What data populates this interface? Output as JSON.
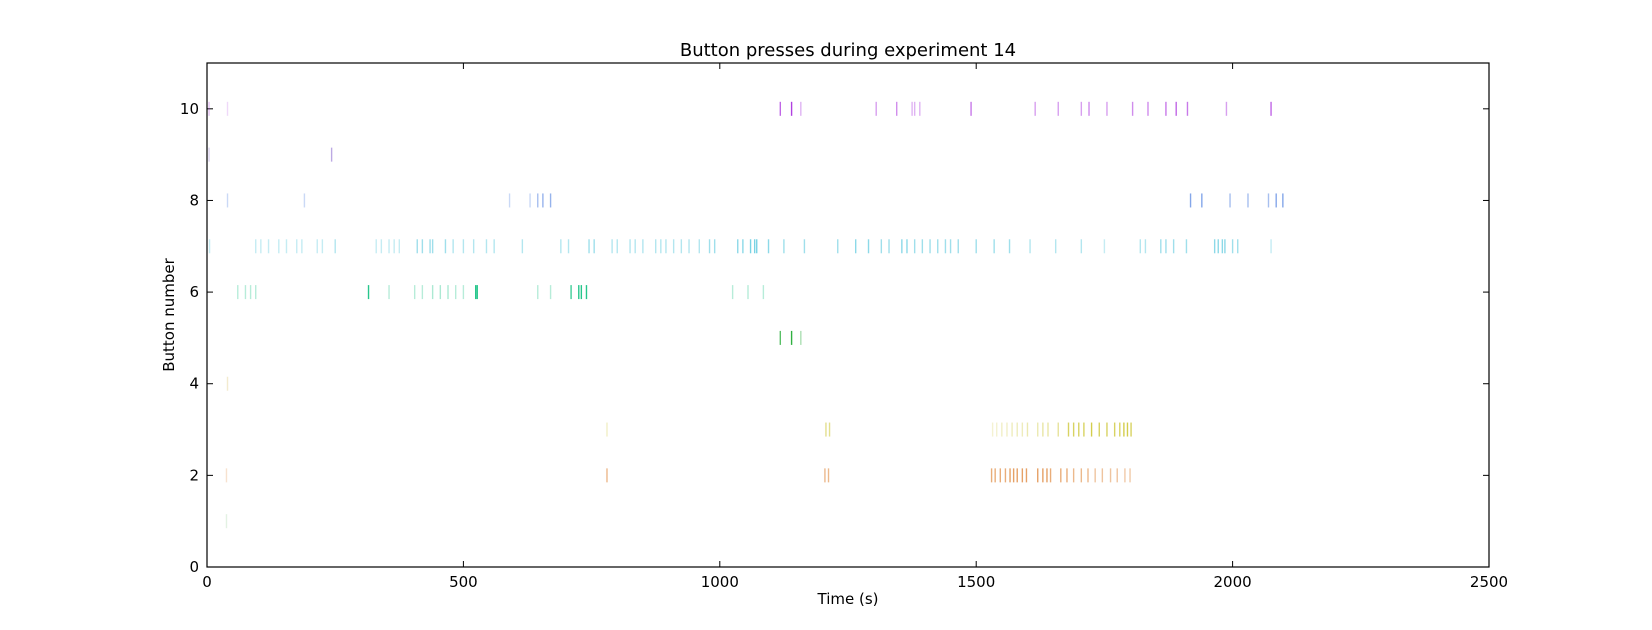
{
  "chart_data": {
    "type": "scatter",
    "marker": "vertical-tick",
    "title": "Button presses during experiment 14",
    "xlabel": "Time (s)",
    "ylabel": "Button number",
    "xlim": [
      0,
      2500
    ],
    "ylim": [
      0,
      11
    ],
    "xticks": [
      0,
      500,
      1000,
      1500,
      2000,
      2500
    ],
    "yticks": [
      0,
      2,
      4,
      6,
      8,
      10
    ],
    "grid": false,
    "series": [
      {
        "button": 1,
        "color": "#c8e6c8",
        "presses": [
          {
            "t": 38,
            "a": 0.5
          }
        ]
      },
      {
        "button": 2,
        "color": "#e08a40",
        "presses": [
          {
            "t": 38,
            "a": 0.25
          },
          {
            "t": 780,
            "a": 0.6
          },
          {
            "t": 1205,
            "a": 0.6
          },
          {
            "t": 1212,
            "a": 0.6
          },
          {
            "t": 1530,
            "a": 0.7
          },
          {
            "t": 1537,
            "a": 0.7
          },
          {
            "t": 1547,
            "a": 0.7
          },
          {
            "t": 1557,
            "a": 0.7
          },
          {
            "t": 1566,
            "a": 0.8
          },
          {
            "t": 1573,
            "a": 0.8
          },
          {
            "t": 1580,
            "a": 0.8
          },
          {
            "t": 1590,
            "a": 0.8
          },
          {
            "t": 1598,
            "a": 0.8
          },
          {
            "t": 1620,
            "a": 0.8
          },
          {
            "t": 1630,
            "a": 0.8
          },
          {
            "t": 1638,
            "a": 0.8
          },
          {
            "t": 1645,
            "a": 0.7
          },
          {
            "t": 1665,
            "a": 0.7
          },
          {
            "t": 1677,
            "a": 0.7
          },
          {
            "t": 1690,
            "a": 0.6
          },
          {
            "t": 1705,
            "a": 0.6
          },
          {
            "t": 1718,
            "a": 0.6
          },
          {
            "t": 1732,
            "a": 0.5
          },
          {
            "t": 1746,
            "a": 0.5
          },
          {
            "t": 1762,
            "a": 0.5
          },
          {
            "t": 1775,
            "a": 0.5
          },
          {
            "t": 1790,
            "a": 0.45
          },
          {
            "t": 1800,
            "a": 0.45
          }
        ]
      },
      {
        "button": 3,
        "color": "#c8c020",
        "presses": [
          {
            "t": 780,
            "a": 0.25
          },
          {
            "t": 1207,
            "a": 0.5
          },
          {
            "t": 1214,
            "a": 0.5
          },
          {
            "t": 1532,
            "a": 0.2
          },
          {
            "t": 1540,
            "a": 0.2
          },
          {
            "t": 1550,
            "a": 0.25
          },
          {
            "t": 1560,
            "a": 0.25
          },
          {
            "t": 1570,
            "a": 0.3
          },
          {
            "t": 1580,
            "a": 0.3
          },
          {
            "t": 1590,
            "a": 0.3
          },
          {
            "t": 1600,
            "a": 0.35
          },
          {
            "t": 1620,
            "a": 0.35
          },
          {
            "t": 1630,
            "a": 0.4
          },
          {
            "t": 1640,
            "a": 0.4
          },
          {
            "t": 1660,
            "a": 0.45
          },
          {
            "t": 1680,
            "a": 0.7
          },
          {
            "t": 1690,
            "a": 0.7
          },
          {
            "t": 1700,
            "a": 0.7
          },
          {
            "t": 1710,
            "a": 0.7
          },
          {
            "t": 1725,
            "a": 0.8
          },
          {
            "t": 1740,
            "a": 0.7
          },
          {
            "t": 1755,
            "a": 0.7
          },
          {
            "t": 1770,
            "a": 0.7
          },
          {
            "t": 1780,
            "a": 0.7
          },
          {
            "t": 1788,
            "a": 0.8
          },
          {
            "t": 1795,
            "a": 0.8
          },
          {
            "t": 1802,
            "a": 0.7
          }
        ]
      },
      {
        "button": 4,
        "color": "#e8d8a0",
        "presses": [
          {
            "t": 40,
            "a": 0.5
          }
        ]
      },
      {
        "button": 5,
        "color": "#30b040",
        "presses": [
          {
            "t": 1118,
            "a": 0.8
          },
          {
            "t": 1140,
            "a": 1.0
          },
          {
            "t": 1158,
            "a": 0.4
          }
        ]
      },
      {
        "button": 6,
        "color": "#10c080",
        "presses": [
          {
            "t": 60,
            "a": 0.3
          },
          {
            "t": 75,
            "a": 0.3
          },
          {
            "t": 85,
            "a": 0.3
          },
          {
            "t": 95,
            "a": 0.3
          },
          {
            "t": 315,
            "a": 0.9
          },
          {
            "t": 355,
            "a": 0.3
          },
          {
            "t": 405,
            "a": 0.3
          },
          {
            "t": 420,
            "a": 0.3
          },
          {
            "t": 440,
            "a": 0.35
          },
          {
            "t": 455,
            "a": 0.35
          },
          {
            "t": 470,
            "a": 0.35
          },
          {
            "t": 485,
            "a": 0.3
          },
          {
            "t": 500,
            "a": 0.3
          },
          {
            "t": 524,
            "a": 0.9
          },
          {
            "t": 527,
            "a": 0.9
          },
          {
            "t": 645,
            "a": 0.3
          },
          {
            "t": 670,
            "a": 0.3
          },
          {
            "t": 710,
            "a": 0.8
          },
          {
            "t": 725,
            "a": 0.9
          },
          {
            "t": 730,
            "a": 0.9
          },
          {
            "t": 740,
            "a": 0.9
          },
          {
            "t": 1025,
            "a": 0.3
          },
          {
            "t": 1055,
            "a": 0.3
          },
          {
            "t": 1085,
            "a": 0.3
          }
        ]
      },
      {
        "button": 7,
        "color": "#40c0d8",
        "presses": [
          {
            "t": 5,
            "a": 0.3
          },
          {
            "t": 95,
            "a": 0.3
          },
          {
            "t": 105,
            "a": 0.3
          },
          {
            "t": 120,
            "a": 0.3
          },
          {
            "t": 140,
            "a": 0.3
          },
          {
            "t": 155,
            "a": 0.3
          },
          {
            "t": 175,
            "a": 0.3
          },
          {
            "t": 185,
            "a": 0.3
          },
          {
            "t": 215,
            "a": 0.3
          },
          {
            "t": 225,
            "a": 0.3
          },
          {
            "t": 250,
            "a": 0.4
          },
          {
            "t": 330,
            "a": 0.3
          },
          {
            "t": 340,
            "a": 0.3
          },
          {
            "t": 355,
            "a": 0.3
          },
          {
            "t": 365,
            "a": 0.3
          },
          {
            "t": 375,
            "a": 0.3
          },
          {
            "t": 410,
            "a": 0.5
          },
          {
            "t": 420,
            "a": 0.5
          },
          {
            "t": 435,
            "a": 0.5
          },
          {
            "t": 440,
            "a": 0.5
          },
          {
            "t": 465,
            "a": 0.5
          },
          {
            "t": 480,
            "a": 0.4
          },
          {
            "t": 500,
            "a": 0.4
          },
          {
            "t": 520,
            "a": 0.4
          },
          {
            "t": 545,
            "a": 0.4
          },
          {
            "t": 560,
            "a": 0.4
          },
          {
            "t": 615,
            "a": 0.4
          },
          {
            "t": 690,
            "a": 0.4
          },
          {
            "t": 705,
            "a": 0.4
          },
          {
            "t": 745,
            "a": 0.5
          },
          {
            "t": 755,
            "a": 0.5
          },
          {
            "t": 790,
            "a": 0.4
          },
          {
            "t": 800,
            "a": 0.4
          },
          {
            "t": 825,
            "a": 0.4
          },
          {
            "t": 835,
            "a": 0.4
          },
          {
            "t": 850,
            "a": 0.4
          },
          {
            "t": 875,
            "a": 0.4
          },
          {
            "t": 885,
            "a": 0.4
          },
          {
            "t": 895,
            "a": 0.4
          },
          {
            "t": 910,
            "a": 0.4
          },
          {
            "t": 925,
            "a": 0.4
          },
          {
            "t": 940,
            "a": 0.4
          },
          {
            "t": 960,
            "a": 0.4
          },
          {
            "t": 980,
            "a": 0.5
          },
          {
            "t": 990,
            "a": 0.5
          },
          {
            "t": 1035,
            "a": 0.6
          },
          {
            "t": 1045,
            "a": 0.6
          },
          {
            "t": 1060,
            "a": 0.7
          },
          {
            "t": 1068,
            "a": 0.7
          },
          {
            "t": 1072,
            "a": 0.7
          },
          {
            "t": 1095,
            "a": 0.6
          },
          {
            "t": 1125,
            "a": 0.5
          },
          {
            "t": 1165,
            "a": 0.5
          },
          {
            "t": 1230,
            "a": 0.5
          },
          {
            "t": 1265,
            "a": 0.6
          },
          {
            "t": 1290,
            "a": 0.6
          },
          {
            "t": 1315,
            "a": 0.5
          },
          {
            "t": 1330,
            "a": 0.5
          },
          {
            "t": 1355,
            "a": 0.6
          },
          {
            "t": 1365,
            "a": 0.6
          },
          {
            "t": 1380,
            "a": 0.5
          },
          {
            "t": 1395,
            "a": 0.5
          },
          {
            "t": 1410,
            "a": 0.5
          },
          {
            "t": 1425,
            "a": 0.5
          },
          {
            "t": 1440,
            "a": 0.5
          },
          {
            "t": 1450,
            "a": 0.5
          },
          {
            "t": 1465,
            "a": 0.5
          },
          {
            "t": 1500,
            "a": 0.5
          },
          {
            "t": 1535,
            "a": 0.5
          },
          {
            "t": 1565,
            "a": 0.5
          },
          {
            "t": 1605,
            "a": 0.4
          },
          {
            "t": 1655,
            "a": 0.4
          },
          {
            "t": 1705,
            "a": 0.4
          },
          {
            "t": 1750,
            "a": 0.3
          },
          {
            "t": 1820,
            "a": 0.4
          },
          {
            "t": 1830,
            "a": 0.4
          },
          {
            "t": 1860,
            "a": 0.5
          },
          {
            "t": 1870,
            "a": 0.5
          },
          {
            "t": 1885,
            "a": 0.5
          },
          {
            "t": 1910,
            "a": 0.5
          },
          {
            "t": 1965,
            "a": 0.6
          },
          {
            "t": 1972,
            "a": 0.6
          },
          {
            "t": 1980,
            "a": 0.6
          },
          {
            "t": 1985,
            "a": 0.6
          },
          {
            "t": 2000,
            "a": 0.5
          },
          {
            "t": 2010,
            "a": 0.5
          },
          {
            "t": 2075,
            "a": 0.3
          }
        ]
      },
      {
        "button": 8,
        "color": "#5080e0",
        "presses": [
          {
            "t": 40,
            "a": 0.3
          },
          {
            "t": 190,
            "a": 0.3
          },
          {
            "t": 590,
            "a": 0.3
          },
          {
            "t": 630,
            "a": 0.3
          },
          {
            "t": 645,
            "a": 0.5
          },
          {
            "t": 655,
            "a": 0.6
          },
          {
            "t": 670,
            "a": 0.6
          },
          {
            "t": 1918,
            "a": 0.7
          },
          {
            "t": 1940,
            "a": 0.7
          },
          {
            "t": 1995,
            "a": 0.5
          },
          {
            "t": 2030,
            "a": 0.5
          },
          {
            "t": 2070,
            "a": 0.5
          },
          {
            "t": 2085,
            "a": 0.7
          },
          {
            "t": 2098,
            "a": 0.7
          }
        ]
      },
      {
        "button": 9,
        "color": "#9070d0",
        "presses": [
          {
            "t": 4,
            "a": 0.3
          },
          {
            "t": 243,
            "a": 0.6
          }
        ]
      },
      {
        "button": 10,
        "color": "#b040e0",
        "presses": [
          {
            "t": 4,
            "a": 0.3
          },
          {
            "t": 40,
            "a": 0.2
          },
          {
            "t": 1118,
            "a": 0.8
          },
          {
            "t": 1140,
            "a": 1.0
          },
          {
            "t": 1158,
            "a": 0.4
          },
          {
            "t": 1305,
            "a": 0.5
          },
          {
            "t": 1345,
            "a": 0.6
          },
          {
            "t": 1375,
            "a": 0.4
          },
          {
            "t": 1380,
            "a": 0.4
          },
          {
            "t": 1390,
            "a": 0.4
          },
          {
            "t": 1490,
            "a": 0.7
          },
          {
            "t": 1615,
            "a": 0.5
          },
          {
            "t": 1660,
            "a": 0.5
          },
          {
            "t": 1705,
            "a": 0.5
          },
          {
            "t": 1720,
            "a": 0.6
          },
          {
            "t": 1755,
            "a": 0.5
          },
          {
            "t": 1805,
            "a": 0.6
          },
          {
            "t": 1835,
            "a": 0.6
          },
          {
            "t": 1870,
            "a": 0.7
          },
          {
            "t": 1890,
            "a": 0.8
          },
          {
            "t": 1912,
            "a": 0.7
          },
          {
            "t": 1988,
            "a": 0.5
          },
          {
            "t": 2075,
            "a": 0.8
          }
        ]
      }
    ]
  }
}
